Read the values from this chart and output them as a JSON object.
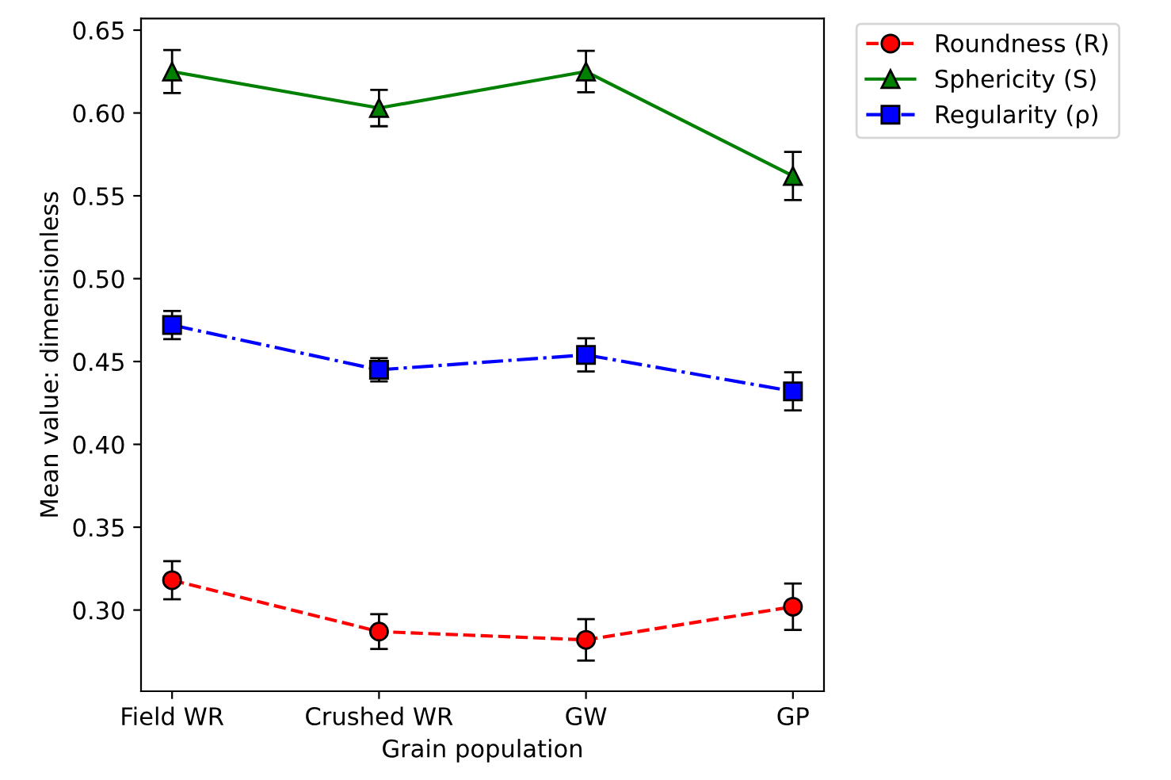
{
  "chart_data": {
    "type": "line",
    "xlabel": "Grain population",
    "ylabel": "Mean value: dimensionless",
    "categories": [
      "Field WR",
      "Crushed WR",
      "GW",
      "GP"
    ],
    "series": [
      {
        "name": "Roundness (R)",
        "color": "#ff0000",
        "values": [
          0.318,
          0.287,
          0.282,
          0.302
        ],
        "errors": [
          0.0115,
          0.0105,
          0.0125,
          0.014
        ],
        "marker": "circle",
        "line_style": "dashed"
      },
      {
        "name": "Sphericity (S)",
        "color": "#008000",
        "values": [
          0.625,
          0.603,
          0.625,
          0.562
        ],
        "errors": [
          0.013,
          0.011,
          0.0125,
          0.0145
        ],
        "marker": "triangle",
        "line_style": "solid"
      },
      {
        "name": "Regularity (ρ)",
        "color": "#0000ff",
        "values": [
          0.472,
          0.445,
          0.454,
          0.432
        ],
        "errors": [
          0.0085,
          0.007,
          0.01,
          0.0115
        ],
        "marker": "square",
        "line_style": "dashdot"
      }
    ],
    "ylim": [
      0.251,
      0.657
    ],
    "yticks": [
      {
        "value": 0.3,
        "label": "0.30"
      },
      0.35,
      {
        "value": 0.4,
        "label": "0.40"
      },
      0.45,
      {
        "value": 0.5,
        "label": "0.50"
      },
      0.55,
      {
        "value": 0.6,
        "label": "0.60"
      },
      0.65
    ],
    "grid": false,
    "legend": "outside top right"
  }
}
